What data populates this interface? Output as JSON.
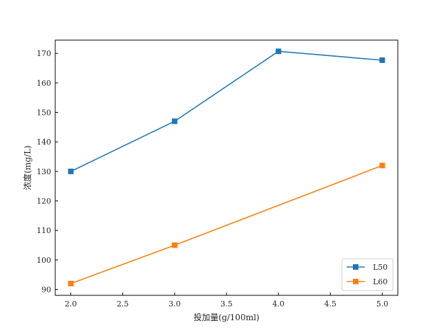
{
  "chart_data": {
    "type": "line",
    "xlabel": "投加量(g/100ml)",
    "ylabel": "浓度(mg/L)",
    "x": [
      2.0,
      3.0,
      4.0,
      5.0
    ],
    "xlim": [
      1.85,
      5.15
    ],
    "ylim": [
      88,
      174.5
    ],
    "xticks": [
      "2.0",
      "2.5",
      "3.0",
      "3.5",
      "4.0",
      "4.5",
      "5.0"
    ],
    "yticks": [
      "90",
      "100",
      "110",
      "120",
      "130",
      "140",
      "150",
      "160",
      "170"
    ],
    "grid": false,
    "legend_position": "bottom-right",
    "marker": "square",
    "series": [
      {
        "name": "L50",
        "color": "#1f77b4",
        "values": [
          130,
          147,
          170.7,
          167.7
        ]
      },
      {
        "name": "L60",
        "color": "#ff7f0e",
        "values": [
          92,
          105,
          null,
          132
        ]
      }
    ]
  }
}
